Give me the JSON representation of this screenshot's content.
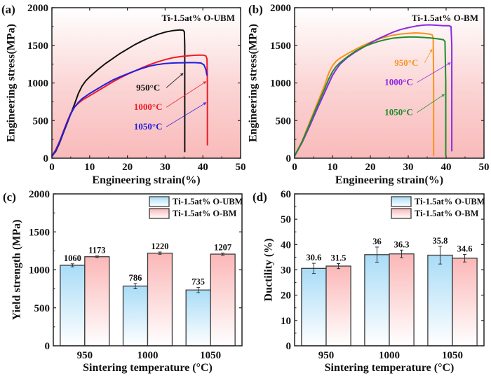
{
  "chart_data": [
    {
      "id": "a",
      "type": "line",
      "panel_label": "(a)",
      "title": "Ti-1.5at% O-UBM",
      "xlabel": "Engineering strain(%)",
      "ylabel": "Engineering stress(MPa)",
      "xlim": [
        0,
        50
      ],
      "ylim": [
        0,
        2000
      ],
      "xticks": [
        0,
        10,
        20,
        30,
        40,
        50
      ],
      "yticks": [
        0,
        500,
        1000,
        1500,
        2000
      ],
      "background": "pink-gradient",
      "series": [
        {
          "name": "950°C",
          "color": "#111111",
          "points": [
            [
              0,
              30
            ],
            [
              1,
              90
            ],
            [
              2,
              200
            ],
            [
              3,
              330
            ],
            [
              4,
              460
            ],
            [
              5,
              590
            ],
            [
              6,
              720
            ],
            [
              7,
              860
            ],
            [
              8,
              960
            ],
            [
              9,
              1030
            ],
            [
              10,
              1080
            ],
            [
              12,
              1170
            ],
            [
              14,
              1250
            ],
            [
              16,
              1320
            ],
            [
              18,
              1390
            ],
            [
              20,
              1450
            ],
            [
              22,
              1510
            ],
            [
              24,
              1560
            ],
            [
              26,
              1605
            ],
            [
              28,
              1645
            ],
            [
              30,
              1675
            ],
            [
              32,
              1695
            ],
            [
              34,
              1705
            ],
            [
              34.8,
              1700
            ],
            [
              35.1,
              1680
            ],
            [
              35.2,
              1500
            ],
            [
              35.2,
              1000
            ],
            [
              35.2,
              500
            ],
            [
              35.2,
              80
            ]
          ]
        },
        {
          "name": "1000°C",
          "color": "#ee1c25",
          "points": [
            [
              0,
              30
            ],
            [
              1,
              110
            ],
            [
              2,
              220
            ],
            [
              3,
              350
            ],
            [
              4,
              480
            ],
            [
              5,
              600
            ],
            [
              6,
              680
            ],
            [
              7,
              730
            ],
            [
              8,
              770
            ],
            [
              10,
              830
            ],
            [
              12,
              890
            ],
            [
              14,
              950
            ],
            [
              16,
              1010
            ],
            [
              18,
              1065
            ],
            [
              20,
              1115
            ],
            [
              22,
              1160
            ],
            [
              24,
              1205
            ],
            [
              26,
              1245
            ],
            [
              28,
              1280
            ],
            [
              30,
              1310
            ],
            [
              32,
              1335
            ],
            [
              34,
              1350
            ],
            [
              36,
              1360
            ],
            [
              38,
              1368
            ],
            [
              40,
              1370
            ],
            [
              40.8,
              1360
            ],
            [
              41.1,
              1320
            ],
            [
              41.2,
              1000
            ],
            [
              41.2,
              500
            ],
            [
              41.2,
              170
            ]
          ]
        },
        {
          "name": "1050°C",
          "color": "#1f1fe0",
          "points": [
            [
              0,
              20
            ],
            [
              1,
              100
            ],
            [
              2,
              210
            ],
            [
              3,
              340
            ],
            [
              4,
              470
            ],
            [
              5,
              590
            ],
            [
              6,
              680
            ],
            [
              7,
              740
            ],
            [
              8,
              790
            ],
            [
              10,
              860
            ],
            [
              12,
              920
            ],
            [
              14,
              980
            ],
            [
              16,
              1035
            ],
            [
              18,
              1080
            ],
            [
              20,
              1120
            ],
            [
              22,
              1160
            ],
            [
              24,
              1195
            ],
            [
              26,
              1225
            ],
            [
              28,
              1245
            ],
            [
              30,
              1258
            ],
            [
              32,
              1265
            ],
            [
              34,
              1268
            ],
            [
              36,
              1270
            ],
            [
              38,
              1270
            ],
            [
              39.5,
              1265
            ],
            [
              40.3,
              1240
            ],
            [
              40.8,
              1180
            ],
            [
              41.1,
              1100
            ]
          ]
        }
      ],
      "annotations": [
        {
          "text": "950°C",
          "color": "#111111",
          "x": 25.5,
          "y": 900,
          "arrow_to": [
            34.8,
            1130
          ]
        },
        {
          "text": "1000°C",
          "color": "#ee1c25",
          "x": 25.5,
          "y": 640,
          "arrow_to": [
            40.9,
            1020
          ]
        },
        {
          "text": "1050°C",
          "color": "#1f1fe0",
          "x": 25.5,
          "y": 380,
          "arrow_to": [
            40.9,
            740
          ]
        }
      ]
    },
    {
      "id": "b",
      "type": "line",
      "panel_label": "(b)",
      "title": "Ti-1.5at% O-BM",
      "xlabel": "Engineering strain(%)",
      "ylabel": "Engineering stress(MPa)",
      "xlim": [
        0,
        50
      ],
      "ylim": [
        0,
        2000
      ],
      "xticks": [
        0,
        10,
        20,
        30,
        40,
        50
      ],
      "yticks": [
        0,
        500,
        1000,
        1500,
        2000
      ],
      "background": "pink-gradient",
      "series": [
        {
          "name": "950°C",
          "color": "#f7931e",
          "points": [
            [
              0,
              30
            ],
            [
              2,
              230
            ],
            [
              4,
              480
            ],
            [
              6,
              730
            ],
            [
              8,
              980
            ],
            [
              9,
              1130
            ],
            [
              10,
              1230
            ],
            [
              11,
              1290
            ],
            [
              12,
              1330
            ],
            [
              14,
              1390
            ],
            [
              16,
              1445
            ],
            [
              18,
              1495
            ],
            [
              20,
              1540
            ],
            [
              22,
              1580
            ],
            [
              24,
              1610
            ],
            [
              26,
              1635
            ],
            [
              28,
              1650
            ],
            [
              30,
              1660
            ],
            [
              32,
              1665
            ],
            [
              34,
              1660
            ],
            [
              35.5,
              1650
            ],
            [
              36.3,
              1640
            ],
            [
              36.6,
              1600
            ],
            [
              36.7,
              1000
            ],
            [
              36.7,
              500
            ],
            [
              36.7,
              30
            ]
          ]
        },
        {
          "name": "1000°C",
          "color": "#8b2be2",
          "points": [
            [
              0,
              30
            ],
            [
              2,
              210
            ],
            [
              4,
              430
            ],
            [
              6,
              660
            ],
            [
              8,
              880
            ],
            [
              9,
              990
            ],
            [
              10,
              1100
            ],
            [
              11,
              1180
            ],
            [
              12,
              1250
            ],
            [
              14,
              1340
            ],
            [
              16,
              1410
            ],
            [
              18,
              1470
            ],
            [
              20,
              1530
            ],
            [
              22,
              1585
            ],
            [
              24,
              1630
            ],
            [
              26,
              1675
            ],
            [
              28,
              1710
            ],
            [
              30,
              1735
            ],
            [
              32,
              1755
            ],
            [
              34,
              1768
            ],
            [
              35.5,
              1772
            ],
            [
              37,
              1768
            ],
            [
              39,
              1762
            ],
            [
              40.8,
              1760
            ],
            [
              41.3,
              1750
            ],
            [
              41.5,
              1500
            ],
            [
              41.5,
              1000
            ],
            [
              41.5,
              500
            ],
            [
              41.5,
              90
            ]
          ]
        },
        {
          "name": "1050°C",
          "color": "#1e8c2e",
          "points": [
            [
              0,
              30
            ],
            [
              2,
              220
            ],
            [
              4,
              460
            ],
            [
              6,
              700
            ],
            [
              8,
              930
            ],
            [
              9,
              1050
            ],
            [
              10,
              1150
            ],
            [
              11,
              1220
            ],
            [
              12,
              1270
            ],
            [
              14,
              1350
            ],
            [
              16,
              1420
            ],
            [
              18,
              1475
            ],
            [
              20,
              1515
            ],
            [
              22,
              1550
            ],
            [
              24,
              1575
            ],
            [
              26,
              1595
            ],
            [
              28,
              1605
            ],
            [
              30,
              1610
            ],
            [
              32,
              1610
            ],
            [
              34,
              1605
            ],
            [
              36,
              1598
            ],
            [
              38,
              1585
            ],
            [
              39.3,
              1575
            ],
            [
              39.7,
              1550
            ],
            [
              39.9,
              1000
            ],
            [
              39.9,
              500
            ],
            [
              39.9,
              30
            ]
          ]
        }
      ],
      "annotations": [
        {
          "text": "950°C",
          "color": "#f7931e",
          "x": 29.5,
          "y": 1230,
          "arrow_to": [
            36.3,
            1450
          ]
        },
        {
          "text": "1000°C",
          "color": "#8b2be2",
          "x": 27.5,
          "y": 970,
          "arrow_to": [
            41.2,
            1270
          ]
        },
        {
          "text": "1050°C",
          "color": "#1e8c2e",
          "x": 27.5,
          "y": 570,
          "arrow_to": [
            39.6,
            850
          ]
        }
      ]
    },
    {
      "id": "c",
      "type": "bar",
      "panel_label": "(c)",
      "title": "",
      "xlabel": "Sintering temperature (°C)",
      "ylabel": "Yield strength (MPa)",
      "ylim": [
        0,
        2000
      ],
      "yticks": [
        0,
        500,
        1000,
        1500,
        2000
      ],
      "categories": [
        "950",
        "1000",
        "1050"
      ],
      "legend_position": "top-right",
      "series": [
        {
          "name": "Ti-1.5at% O-UBM",
          "color_top": "#a9dcf7",
          "color_bottom": "#ffffff",
          "values": [
            1060,
            786,
            735
          ],
          "errors": [
            20,
            35,
            35
          ],
          "labels": [
            "1060",
            "786",
            "735"
          ]
        },
        {
          "name": "Ti-1.5at% O-BM",
          "color_top": "#fbb7b7",
          "color_bottom": "#ffffff",
          "values": [
            1173,
            1220,
            1207
          ],
          "errors": [
            10,
            15,
            15
          ],
          "labels": [
            "1173",
            "1220",
            "1207"
          ]
        }
      ]
    },
    {
      "id": "d",
      "type": "bar",
      "panel_label": "(d)",
      "title": "",
      "xlabel": "Sintering temperature (°C)",
      "ylabel": "Ductility (%)",
      "ylim": [
        0,
        60
      ],
      "yticks": [
        0,
        10,
        20,
        30,
        40,
        50,
        60
      ],
      "categories": [
        "950",
        "1000",
        "1050"
      ],
      "legend_position": "top-right",
      "series": [
        {
          "name": "Ti-1.5at% O-UBM",
          "color_top": "#a9dcf7",
          "color_bottom": "#ffffff",
          "values": [
            30.6,
            36,
            35.8
          ],
          "errors": [
            2,
            3,
            3.5
          ],
          "labels": [
            "30.6",
            "36",
            "35.8"
          ]
        },
        {
          "name": "Ti-1.5at% O-BM",
          "color_top": "#fbb7b7",
          "color_bottom": "#ffffff",
          "values": [
            31.5,
            36.3,
            34.6
          ],
          "errors": [
            1,
            1.5,
            1.5
          ],
          "labels": [
            "31.5",
            "36.3",
            "34.6"
          ]
        }
      ]
    }
  ]
}
